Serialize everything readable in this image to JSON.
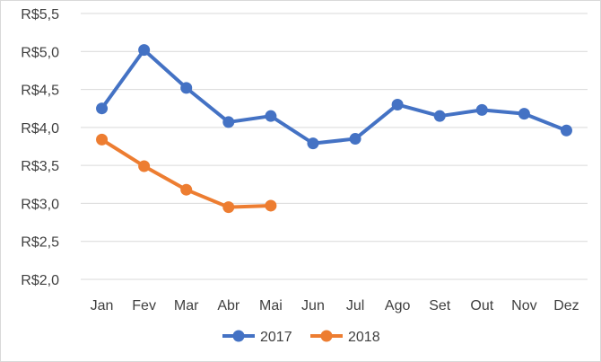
{
  "chart_data": {
    "type": "line",
    "categories": [
      "Jan",
      "Fev",
      "Mar",
      "Abr",
      "Mai",
      "Jun",
      "Jul",
      "Ago",
      "Set",
      "Out",
      "Nov",
      "Dez"
    ],
    "series": [
      {
        "name": "2017",
        "color": "#4472C4",
        "values": [
          4.25,
          5.02,
          4.52,
          4.07,
          4.15,
          3.79,
          3.85,
          4.3,
          4.15,
          4.23,
          4.18,
          3.96
        ]
      },
      {
        "name": "2018",
        "color": "#ED7D31",
        "values": [
          3.84,
          3.49,
          3.18,
          2.95,
          2.97,
          null,
          null,
          null,
          null,
          null,
          null,
          null
        ]
      }
    ],
    "ylim": [
      2.0,
      5.5
    ],
    "ytick_labels": [
      "R$2,0",
      "R$2,5",
      "R$3,0",
      "R$3,5",
      "R$4,0",
      "R$4,5",
      "R$5,0",
      "R$5,5"
    ],
    "grid": true,
    "legend_position": "bottom"
  }
}
